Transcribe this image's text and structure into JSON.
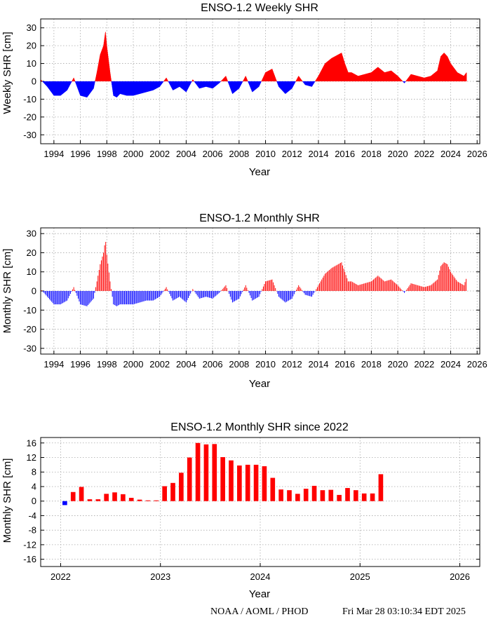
{
  "footer": {
    "source": "NOAA / AOML / PHOD",
    "timestamp": "Fri Mar 28 03:10:34 EDT 2025"
  },
  "colors": {
    "positive": "#ff0000",
    "negative": "#0000ff"
  },
  "chart_data": [
    {
      "type": "bar",
      "title": "ENSO-1.2 Weekly SHR",
      "xlabel": "Year",
      "ylabel": "Weekly SHR [cm]",
      "xlim": [
        1993,
        2026.2
      ],
      "ylim": [
        -35,
        35
      ],
      "xticks": [
        1994,
        1996,
        1998,
        2000,
        2002,
        2004,
        2006,
        2008,
        2010,
        2012,
        2014,
        2016,
        2018,
        2020,
        2022,
        2024,
        2026
      ],
      "yticks": [
        -30,
        -20,
        -10,
        0,
        10,
        20,
        30
      ],
      "grid": true,
      "sampling": "weekly",
      "series": [
        {
          "x": [
            1993.0,
            1993.5,
            1994.0,
            1994.5,
            1995.0,
            1995.5,
            1996.0,
            1996.5,
            1997.0,
            1997.25,
            1997.5,
            1997.75,
            1997.9,
            1998.0,
            1998.25,
            1998.5,
            1998.75,
            1999.0,
            1999.5,
            2000.0,
            2000.5,
            2001.0,
            2001.5,
            2002.0,
            2002.5,
            2003.0,
            2003.5,
            2004.0,
            2004.5,
            2005.0,
            2005.5,
            2006.0,
            2006.5,
            2007.0,
            2007.5,
            2008.0,
            2008.5,
            2009.0,
            2009.5,
            2010.0,
            2010.5,
            2011.0,
            2011.5,
            2012.0,
            2012.5,
            2013.0,
            2013.5,
            2014.0,
            2014.5,
            2015.0,
            2015.25,
            2015.5,
            2015.75,
            2016.0,
            2016.25,
            2016.5,
            2017.0,
            2017.5,
            2018.0,
            2018.5,
            2019.0,
            2019.5,
            2020.0,
            2020.5,
            2021.0,
            2021.5,
            2022.0,
            2022.5,
            2023.0,
            2023.25,
            2023.5,
            2023.75,
            2024.0,
            2024.5,
            2025.0,
            2025.2
          ],
          "values": [
            1,
            -3,
            -8,
            -8,
            -5,
            2,
            -8,
            -9,
            -4,
            5,
            15,
            20,
            28,
            20,
            5,
            -8,
            -9,
            -7,
            -8,
            -8,
            -7,
            -6,
            -5,
            -3,
            2,
            -5,
            -3,
            -6,
            1,
            -4,
            -3,
            -4,
            -1,
            3,
            -7,
            -4,
            3,
            -6,
            -3,
            5,
            7,
            -3,
            -7,
            -4,
            3,
            -2,
            -3,
            3,
            10,
            13,
            14,
            15,
            16,
            10,
            5,
            5,
            3,
            4,
            5,
            8,
            5,
            6,
            3,
            -1,
            4,
            3,
            2,
            3,
            6,
            14,
            16,
            14,
            10,
            5,
            3,
            5
          ]
        }
      ]
    },
    {
      "type": "bar",
      "title": "ENSO-1.2 Monthly SHR",
      "xlabel": "Year",
      "ylabel": "Monthly SHR [cm]",
      "xlim": [
        1993,
        2026.2
      ],
      "ylim": [
        -33,
        33
      ],
      "xticks": [
        1994,
        1996,
        1998,
        2000,
        2002,
        2004,
        2006,
        2008,
        2010,
        2012,
        2014,
        2016,
        2018,
        2020,
        2022,
        2024,
        2026
      ],
      "yticks": [
        -30,
        -20,
        -10,
        0,
        10,
        20,
        30
      ],
      "grid": true,
      "sampling": "monthly",
      "series": [
        {
          "x": [
            1993.0,
            1993.5,
            1994.0,
            1994.5,
            1995.0,
            1995.5,
            1996.0,
            1996.5,
            1997.0,
            1997.25,
            1997.5,
            1997.75,
            1997.9,
            1998.0,
            1998.25,
            1998.5,
            1998.75,
            1999.0,
            1999.5,
            2000.0,
            2000.5,
            2001.0,
            2001.5,
            2002.0,
            2002.5,
            2003.0,
            2003.5,
            2004.0,
            2004.5,
            2005.0,
            2005.5,
            2006.0,
            2006.5,
            2007.0,
            2007.5,
            2008.0,
            2008.5,
            2009.0,
            2009.5,
            2010.0,
            2010.5,
            2011.0,
            2011.5,
            2012.0,
            2012.5,
            2013.0,
            2013.5,
            2014.0,
            2014.5,
            2015.0,
            2015.25,
            2015.5,
            2015.75,
            2016.0,
            2016.25,
            2016.5,
            2017.0,
            2017.5,
            2018.0,
            2018.5,
            2019.0,
            2019.5,
            2020.0,
            2020.5,
            2021.0,
            2021.5,
            2022.0,
            2022.5,
            2023.0,
            2023.25,
            2023.5,
            2023.75,
            2024.0,
            2024.5,
            2025.0,
            2025.2
          ],
          "values": [
            1,
            -3,
            -7,
            -7,
            -5,
            2,
            -7,
            -8,
            -4,
            5,
            14,
            20,
            27,
            19,
            5,
            -7,
            -8,
            -7,
            -7,
            -7,
            -6,
            -5,
            -5,
            -3,
            2,
            -5,
            -3,
            -6,
            1,
            -4,
            -3,
            -4,
            -1,
            3,
            -6,
            -4,
            3,
            -5,
            -3,
            5,
            6,
            -3,
            -6,
            -4,
            3,
            -2,
            -3,
            3,
            9,
            12,
            13,
            14,
            15,
            10,
            5,
            5,
            3,
            4,
            5,
            8,
            5,
            6,
            3,
            -1,
            4,
            3,
            2,
            3,
            6,
            13,
            15,
            14,
            10,
            5,
            3,
            7
          ]
        }
      ]
    },
    {
      "type": "bar",
      "title": "ENSO-1.2 Monthly SHR since 2022",
      "xlabel": "Year",
      "ylabel": "Monthly SHR [cm]",
      "xlim": [
        2021.8,
        2026.2
      ],
      "ylim": [
        -18,
        17.5
      ],
      "xticks": [
        2022,
        2023,
        2024,
        2025,
        2026
      ],
      "yticks": [
        -16,
        -12,
        -8,
        -4,
        0,
        4,
        8,
        12,
        16
      ],
      "grid": true,
      "start_year": 2022,
      "series": [
        {
          "values": [
            -1.1,
            2.5,
            3.9,
            0.5,
            0.5,
            2.0,
            2.4,
            1.9,
            0.9,
            0.4,
            0.2,
            0.2,
            4.1,
            5.0,
            7.8,
            12.0,
            16.0,
            15.6,
            15.7,
            12.1,
            11.2,
            9.8,
            10.0,
            10.0,
            9.6,
            6.4,
            3.2,
            3.0,
            2.0,
            3.4,
            4.2,
            3.0,
            3.1,
            1.7,
            3.6,
            3.0,
            2.1,
            2.1,
            7.4
          ]
        }
      ]
    }
  ]
}
